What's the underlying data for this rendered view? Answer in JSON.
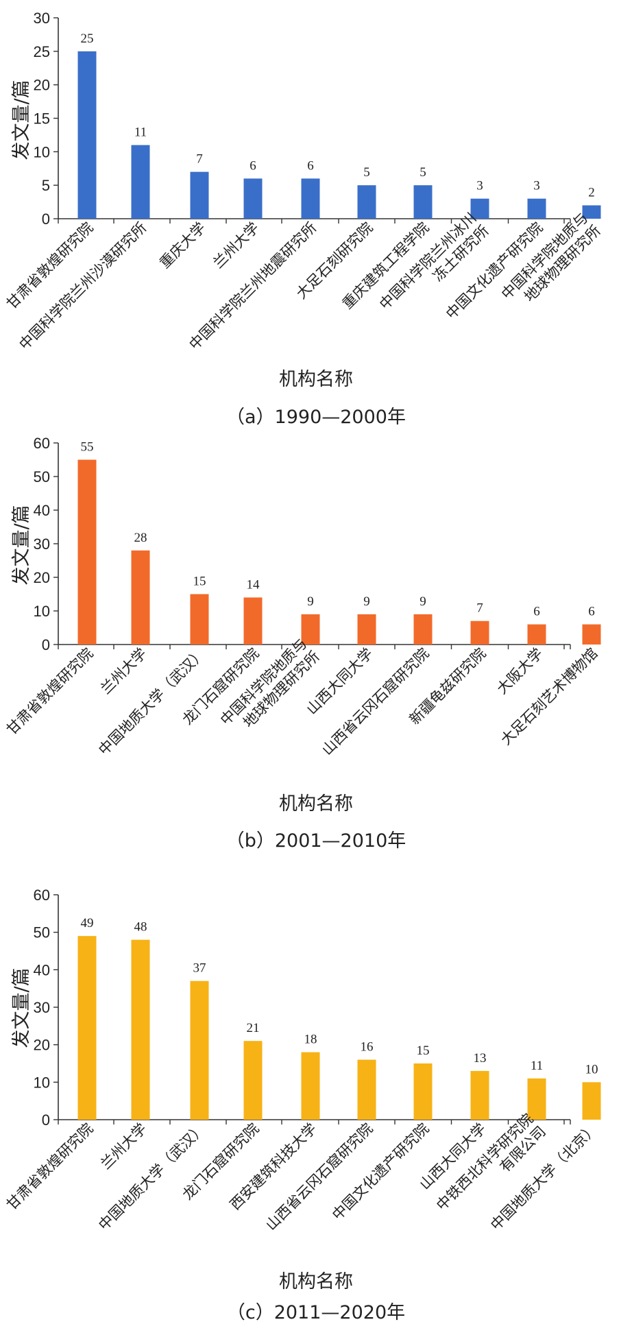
{
  "chart_data": [
    {
      "type": "bar",
      "caption": "（a）1990—2000年",
      "xlabel": "机构名称",
      "ylabel": "发文量/篇",
      "ylim": [
        0,
        30
      ],
      "yticks": [
        0,
        5,
        10,
        15,
        20,
        25,
        30
      ],
      "color": "#3A6FC9",
      "categories": [
        [
          "甘肃省敦煌研究院"
        ],
        [
          "中国科学院兰州沙漠研究所"
        ],
        [
          "重庆大学"
        ],
        [
          "兰州大学"
        ],
        [
          "中国科学院兰州地震研究所"
        ],
        [
          "大足石刻研究院"
        ],
        [
          "重庆建筑工程学院"
        ],
        [
          "中国科学院兰州冰川",
          "冻土研究所"
        ],
        [
          "中国文化遗产研究院"
        ],
        [
          "中国科学院地质与",
          "地球物理研究所"
        ]
      ],
      "values": [
        25,
        11,
        7,
        6,
        6,
        5,
        5,
        3,
        3,
        2
      ]
    },
    {
      "type": "bar",
      "caption": "（b）2001—2010年",
      "xlabel": "机构名称",
      "ylabel": "发文量/篇",
      "ylim": [
        0,
        60
      ],
      "yticks": [
        0,
        10,
        20,
        30,
        40,
        50,
        60
      ],
      "color": "#F26A2A",
      "categories": [
        [
          "甘肃省敦煌研究院"
        ],
        [
          "兰州大学"
        ],
        [
          "中国地质大学（武汉）"
        ],
        [
          "龙门石窟研究院"
        ],
        [
          "中国科学院地质与",
          "地球物理研究所"
        ],
        [
          "山西大同大学"
        ],
        [
          "山西省云冈石窟研究院"
        ],
        [
          "新疆龟兹研究院"
        ],
        [
          "大阪大学"
        ],
        [
          "大足石刻艺术博物馆"
        ]
      ],
      "values": [
        55,
        28,
        15,
        14,
        9,
        9,
        9,
        7,
        6,
        6
      ]
    },
    {
      "type": "bar",
      "caption": "（c）2011—2020年",
      "xlabel": "机构名称",
      "ylabel": "发文量/篇",
      "ylim": [
        0,
        60
      ],
      "yticks": [
        0,
        10,
        20,
        30,
        40,
        50,
        60
      ],
      "color": "#F7B216",
      "categories": [
        [
          "甘肃省敦煌研究院"
        ],
        [
          "兰州大学"
        ],
        [
          "中国地质大学（武汉）"
        ],
        [
          "龙门石窟研究院"
        ],
        [
          "西安建筑科技大学"
        ],
        [
          "山西省云冈石窟研究院"
        ],
        [
          "中国文化遗产研究院"
        ],
        [
          "山西大同大学"
        ],
        [
          "中铁西北科学研究院",
          "有限公司"
        ],
        [
          "中国地质大学（北京）"
        ]
      ],
      "values": [
        49,
        48,
        37,
        21,
        18,
        16,
        15,
        13,
        11,
        10
      ]
    }
  ]
}
